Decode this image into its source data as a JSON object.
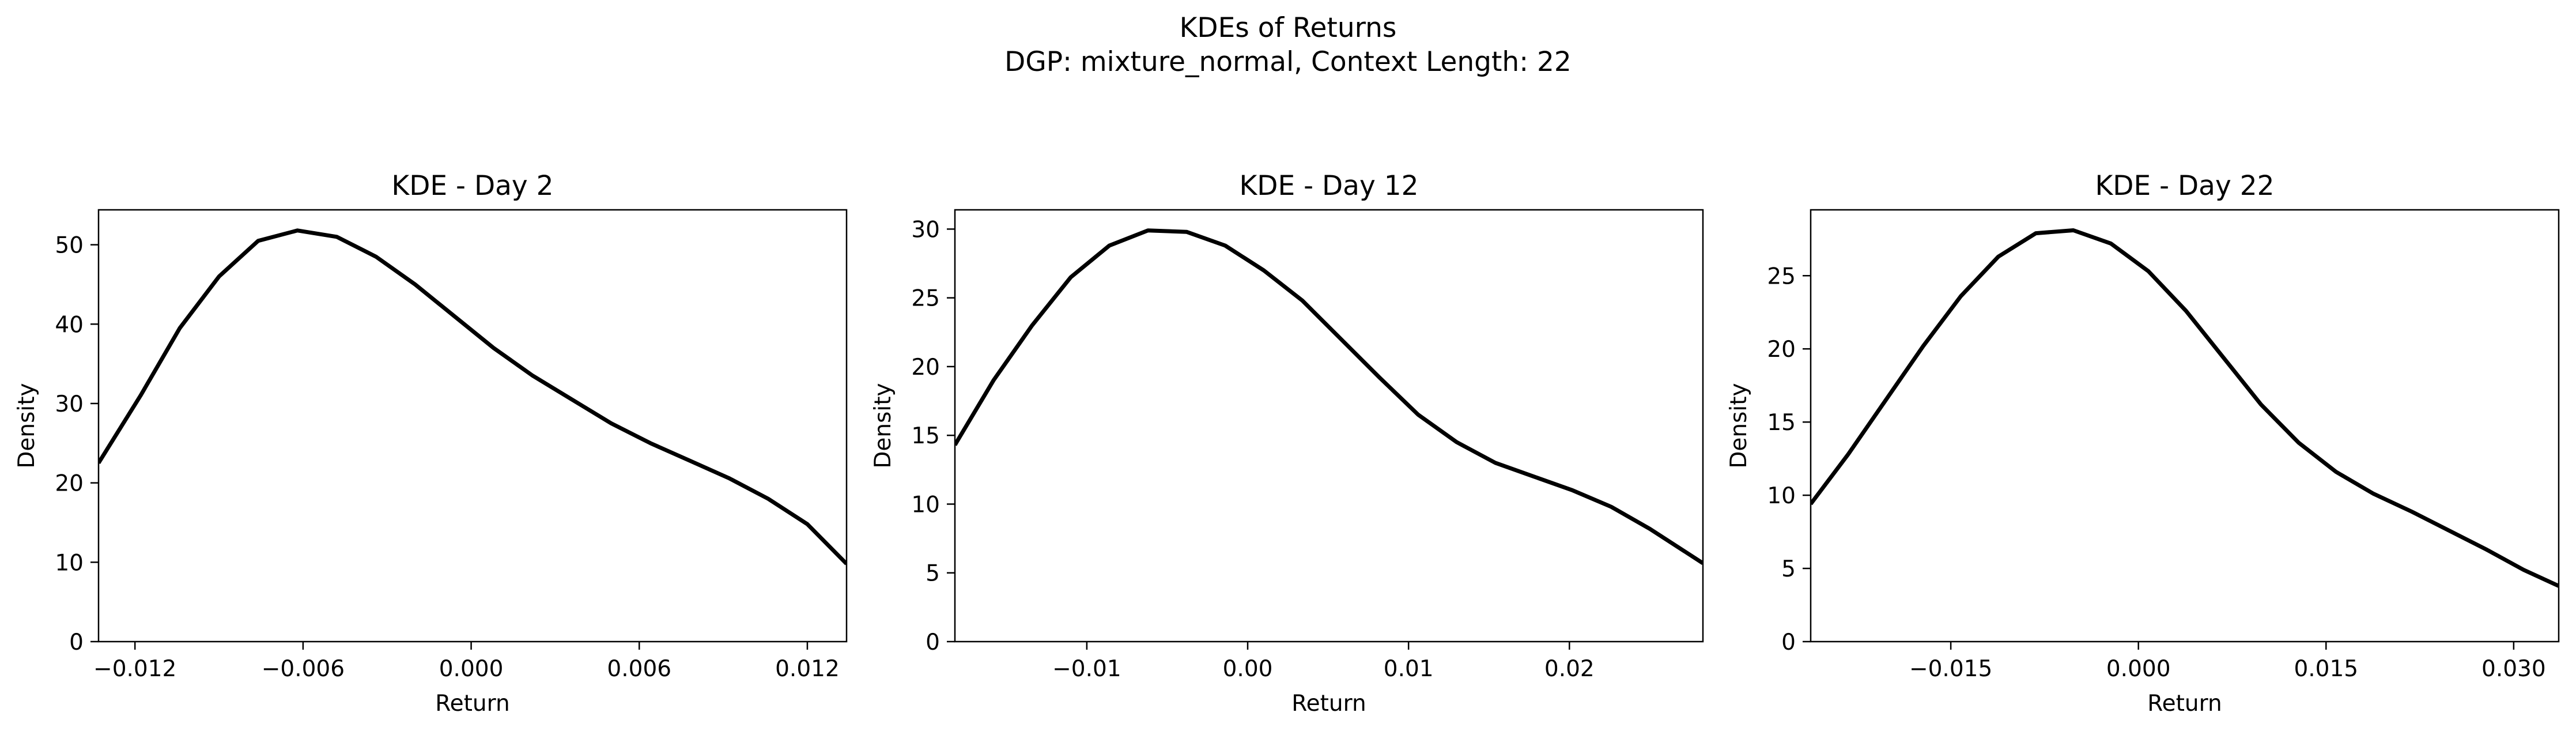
{
  "figure": {
    "title_line1": "KDEs of Returns",
    "title_line2": "DGP: mixture_normal, Context Length: 22"
  },
  "chart_data": [
    {
      "type": "line",
      "title": "KDE - Day 2",
      "xlabel": "Return",
      "ylabel": "Density",
      "xlim": [
        -0.0133,
        0.0134
      ],
      "ylim": [
        0,
        54.4
      ],
      "xticks": [
        -0.012,
        -0.006,
        0.0,
        0.006,
        0.012
      ],
      "xtick_labels": [
        "−0.012",
        "−0.006",
        "0.000",
        "0.006",
        "0.012"
      ],
      "yticks": [
        0,
        10,
        20,
        30,
        40,
        50
      ],
      "ytick_labels": [
        "0",
        "10",
        "20",
        "30",
        "40",
        "50"
      ],
      "line_color": "#000000",
      "x": [
        -0.0133,
        -0.0118,
        -0.0104,
        -0.009,
        -0.0076,
        -0.0062,
        -0.0048,
        -0.0034,
        -0.002,
        -0.0006,
        0.0008,
        0.0022,
        0.0036,
        0.005,
        0.0064,
        0.0078,
        0.0092,
        0.0106,
        0.012,
        0.0134
      ],
      "y": [
        22.5,
        31.0,
        39.5,
        46.0,
        50.5,
        51.8,
        51.0,
        48.5,
        45.0,
        41.0,
        37.0,
        33.5,
        30.5,
        27.5,
        25.0,
        22.8,
        20.6,
        18.0,
        14.8,
        9.8
      ]
    },
    {
      "type": "line",
      "title": "KDE - Day 12",
      "xlabel": "Return",
      "ylabel": "Density",
      "xlim": [
        -0.0182,
        0.0283
      ],
      "ylim": [
        0,
        31.4
      ],
      "xticks": [
        -0.01,
        0.0,
        0.01,
        0.02
      ],
      "xtick_labels": [
        "−0.01",
        "0.00",
        "0.01",
        "0.02"
      ],
      "yticks": [
        0,
        5,
        10,
        15,
        20,
        25,
        30
      ],
      "ytick_labels": [
        "0",
        "5",
        "10",
        "15",
        "20",
        "25",
        "30"
      ],
      "line_color": "#000000",
      "x": [
        -0.0182,
        -0.0158,
        -0.0134,
        -0.011,
        -0.0086,
        -0.0062,
        -0.0038,
        -0.0014,
        0.001,
        0.0034,
        0.0058,
        0.0082,
        0.0106,
        0.013,
        0.0154,
        0.0178,
        0.0202,
        0.0226,
        0.025,
        0.0283
      ],
      "y": [
        14.3,
        19.0,
        23.0,
        26.5,
        28.8,
        29.9,
        29.8,
        28.8,
        27.0,
        24.8,
        22.0,
        19.2,
        16.5,
        14.5,
        13.0,
        12.0,
        11.0,
        9.8,
        8.2,
        5.7
      ]
    },
    {
      "type": "line",
      "title": "KDE - Day 22",
      "xlabel": "Return",
      "ylabel": "Density",
      "xlim": [
        -0.0262,
        0.0336
      ],
      "ylim": [
        0,
        29.5
      ],
      "xticks": [
        -0.015,
        0.0,
        0.015,
        0.03
      ],
      "xtick_labels": [
        "−0.015",
        "0.000",
        "0.015",
        "0.030"
      ],
      "yticks": [
        0,
        5,
        10,
        15,
        20,
        25
      ],
      "ytick_labels": [
        "0",
        "5",
        "10",
        "15",
        "20",
        "25"
      ],
      "line_color": "#000000",
      "x": [
        -0.0262,
        -0.0232,
        -0.0202,
        -0.0172,
        -0.0142,
        -0.0112,
        -0.0082,
        -0.0052,
        -0.0022,
        0.0008,
        0.0038,
        0.0068,
        0.0098,
        0.0128,
        0.0158,
        0.0188,
        0.0218,
        0.0248,
        0.0278,
        0.0308,
        0.0336
      ],
      "y": [
        9.4,
        12.8,
        16.5,
        20.2,
        23.6,
        26.3,
        27.9,
        28.1,
        27.2,
        25.3,
        22.6,
        19.4,
        16.2,
        13.6,
        11.6,
        10.1,
        8.9,
        7.6,
        6.3,
        4.9,
        3.8
      ]
    }
  ]
}
